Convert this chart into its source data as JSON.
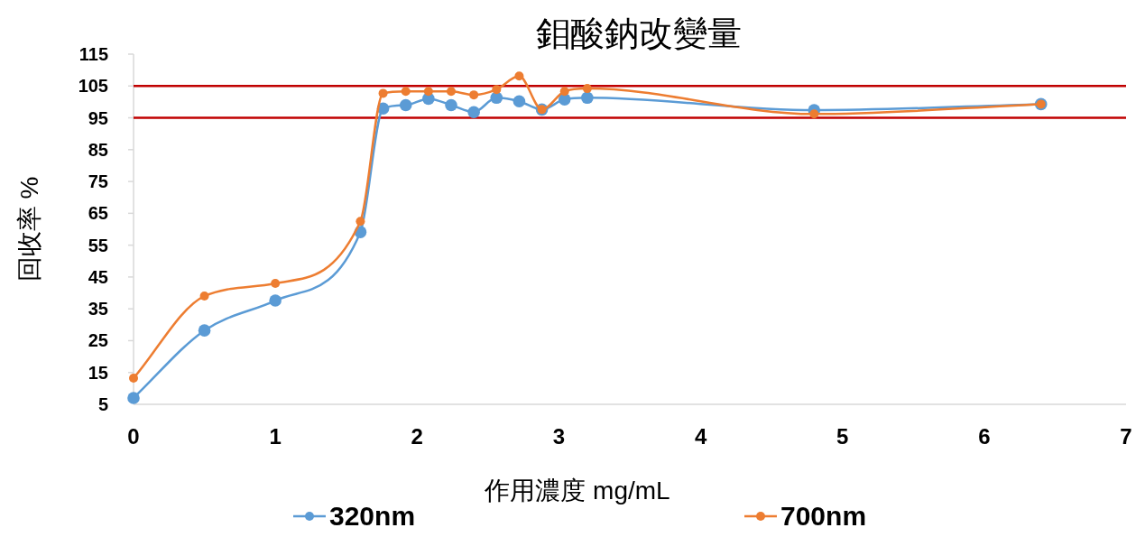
{
  "chart_data": {
    "type": "line",
    "title": "鉬酸鈉改變量",
    "xlabel": "作用濃度 mg/mL",
    "ylabel": "回收率 %",
    "x": [
      0,
      0.5,
      1,
      1.6,
      1.76,
      1.92,
      2.08,
      2.24,
      2.4,
      2.56,
      2.72,
      2.88,
      3.04,
      3.2,
      4.8,
      6.4
    ],
    "series": [
      {
        "name": "320nm",
        "color": "#5b9bd5",
        "values": [
          7,
          28.2,
          37.6,
          59.1,
          97.9,
          99,
          101,
          99,
          96.8,
          101.3,
          100.2,
          97.6,
          100.8,
          101.3,
          97.4,
          99.3
        ]
      },
      {
        "name": "700nm",
        "color": "#ed7d31",
        "values": [
          13.2,
          39,
          43,
          62.5,
          102.7,
          103.3,
          103.3,
          103.3,
          102.2,
          103.9,
          108.1,
          97.6,
          103.3,
          104.2,
          96.2,
          99.3
        ]
      }
    ],
    "xlim": [
      0,
      7
    ],
    "xticks": [
      0,
      1,
      2,
      3,
      4,
      5,
      6,
      7
    ],
    "ylim": [
      5,
      115
    ],
    "yticks": [
      5,
      15,
      25,
      35,
      45,
      55,
      65,
      75,
      85,
      95,
      105,
      115
    ],
    "ref_lines": [
      {
        "axis": "y",
        "value": 95,
        "color": "#c00000"
      },
      {
        "axis": "y",
        "value": 105,
        "color": "#c00000"
      }
    ],
    "legend": "bottom",
    "marker": "circle",
    "line_style": "solid",
    "grid": false
  }
}
